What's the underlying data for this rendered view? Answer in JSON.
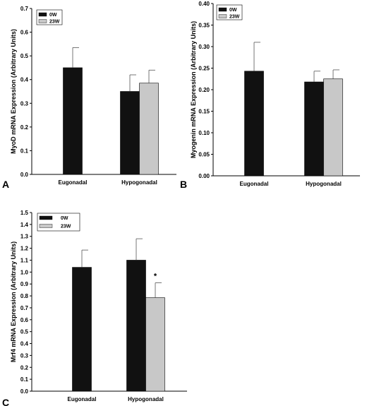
{
  "chart_data": [
    {
      "type": "bar",
      "panel": "A",
      "categories": [
        "Eugonadal",
        "Hypogonadal"
      ],
      "ylabel": "MyoD mRNA Expression (Arbitrary Units)",
      "ylim": [
        0,
        0.7
      ],
      "yticks": [
        "0.0",
        "0.1",
        "0.2",
        "0.3",
        "0.4",
        "0.5",
        "0.6",
        "0.7"
      ],
      "legend": {
        "position": "top-left",
        "entries": [
          "0W",
          "23W"
        ]
      },
      "series": [
        {
          "name": "0W",
          "color": "#111111",
          "values": [
            0.45,
            0.35
          ],
          "errors": [
            0.085,
            0.07
          ]
        },
        {
          "name": "23W",
          "color": "#c8c8c8",
          "values": [
            null,
            0.385
          ],
          "errors": [
            null,
            0.055
          ]
        }
      ]
    },
    {
      "type": "bar",
      "panel": "B",
      "categories": [
        "Eugonadal",
        "Hypogonadal"
      ],
      "ylabel": "Myogenin mRNA Expression (Arbitrary Units)",
      "ylim": [
        0,
        0.4
      ],
      "yticks": [
        "0.00",
        "0.05",
        "0.10",
        "0.15",
        "0.20",
        "0.25",
        "0.30",
        "0.35",
        "0.40"
      ],
      "legend": {
        "position": "top-left",
        "entries": [
          "0W",
          "23W"
        ]
      },
      "series": [
        {
          "name": "0W",
          "color": "#111111",
          "values": [
            0.243,
            0.218
          ],
          "errors": [
            0.067,
            0.025
          ]
        },
        {
          "name": "23W",
          "color": "#c8c8c8",
          "values": [
            null,
            0.225
          ],
          "errors": [
            null,
            0.021
          ]
        }
      ]
    },
    {
      "type": "bar",
      "panel": "C",
      "categories": [
        "Eugonadal",
        "Hypogonadal"
      ],
      "ylabel": "Mrf4 mRNA Expression (Arbitrary Units)",
      "ylim": [
        0,
        1.5
      ],
      "yticks": [
        "0.0",
        "0.1",
        "0.2",
        "0.3",
        "0.4",
        "0.5",
        "0.6",
        "0.7",
        "0.8",
        "0.9",
        "1.0",
        "1.1",
        "1.2",
        "1.3",
        "1.4",
        "1.5"
      ],
      "legend": {
        "position": "top-left",
        "entries": [
          "0W",
          "23W"
        ]
      },
      "annotations": [
        {
          "text": "*",
          "category": "Hypogonadal",
          "series": "23W"
        }
      ],
      "series": [
        {
          "name": "0W",
          "color": "#111111",
          "values": [
            1.04,
            1.1
          ],
          "errors": [
            0.145,
            0.18
          ]
        },
        {
          "name": "23W",
          "color": "#c8c8c8",
          "values": [
            null,
            0.785
          ],
          "errors": [
            null,
            0.125
          ]
        }
      ]
    }
  ]
}
